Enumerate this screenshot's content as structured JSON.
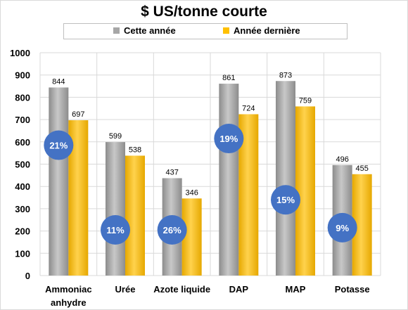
{
  "chart_data": {
    "type": "bar",
    "title": "$ US/tonne courte",
    "categories": [
      "Ammoniac anhydre",
      "Urée",
      "Azote liquide",
      "DAP",
      "MAP",
      "Potasse"
    ],
    "category_lines": [
      [
        "Ammoniac",
        "anhydre"
      ],
      [
        "Urée"
      ],
      [
        "Azote liquide"
      ],
      [
        "DAP"
      ],
      [
        "MAP"
      ],
      [
        "Potasse"
      ]
    ],
    "series": [
      {
        "name": "Cette année",
        "values": [
          844,
          599,
          437,
          861,
          873,
          496
        ],
        "color": "#a6a6a6"
      },
      {
        "name": "Année dernière",
        "values": [
          697,
          538,
          346,
          724,
          759,
          455
        ],
        "color": "#ffc000"
      }
    ],
    "data_labels": [
      [
        "844",
        "599",
        "437",
        "861",
        "873",
        "496"
      ],
      [
        "697",
        "538",
        "346",
        "724",
        "759",
        "455"
      ]
    ],
    "annotations": [
      {
        "category": "Ammoniac anhydre",
        "text": "21%",
        "y": 585
      },
      {
        "category": "Urée",
        "text": "11%",
        "y": 205
      },
      {
        "category": "Azote liquide",
        "text": "26%",
        "y": 205
      },
      {
        "category": "DAP",
        "text": "19%",
        "y": 615
      },
      {
        "category": "MAP",
        "text": "15%",
        "y": 340
      },
      {
        "category": "Potasse",
        "text": "9%",
        "y": 215
      }
    ],
    "annotation_color": "#4472c4",
    "yticks": [
      "0",
      "100",
      "200",
      "300",
      "400",
      "500",
      "600",
      "700",
      "800",
      "900",
      "1000"
    ],
    "ylim": [
      0,
      1000
    ],
    "grid": true,
    "legend": "top"
  }
}
